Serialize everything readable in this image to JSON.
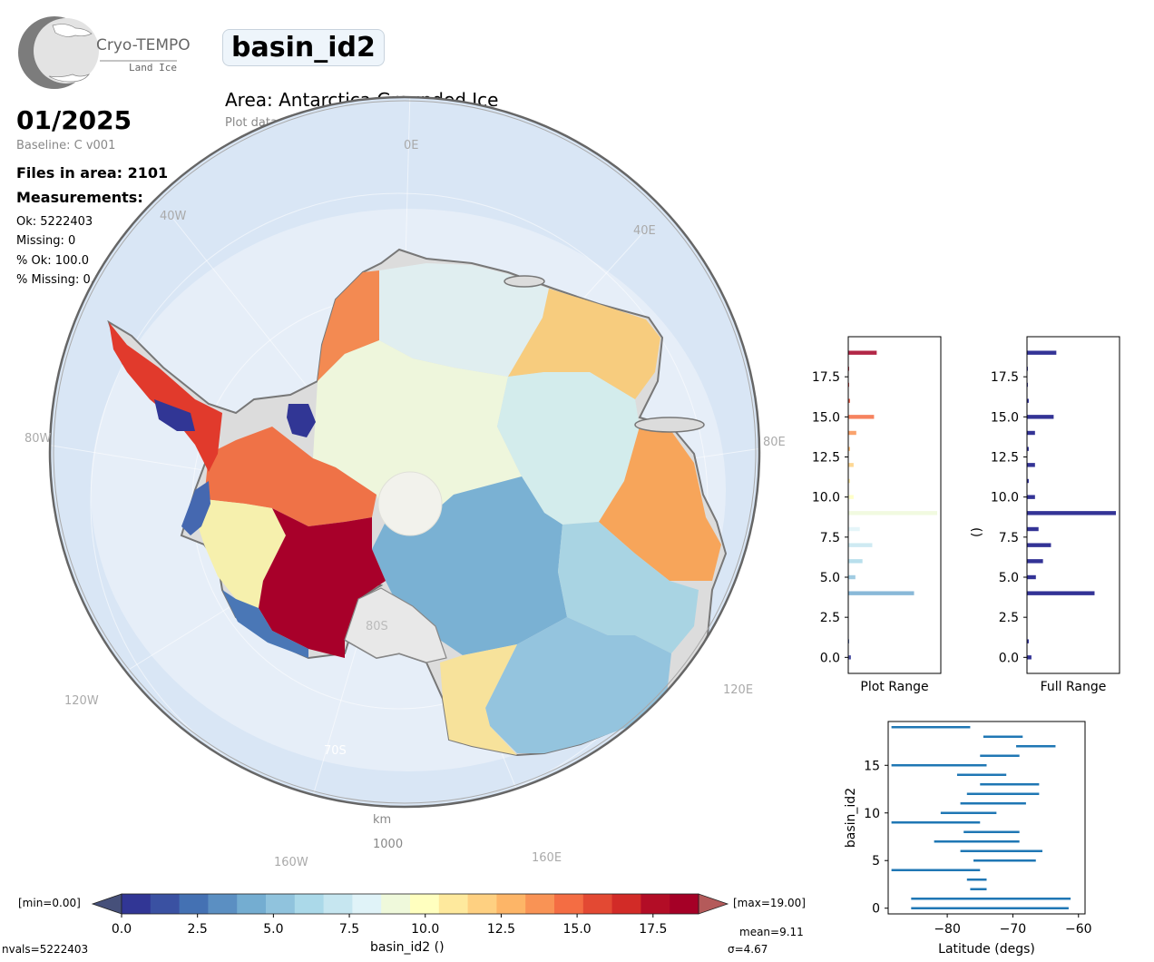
{
  "logo": {
    "name": "Cryo-TEMPO",
    "subtitle": "Land Ice"
  },
  "title": "basin_id2",
  "area": "Area: Antarctica Grounded Ice",
  "mask": "Plot data mask: grounded ice",
  "date": "01/2025",
  "baseline": "Baseline: C v001",
  "files": "Files in area: 2101",
  "measurements_label": "Measurements:",
  "stats": [
    "Ok: 5222403",
    "Missing: 0",
    "% Ok: 100.0",
    "% Missing: 0.0"
  ],
  "map": {
    "lon_labels": [
      "0E",
      "40E",
      "80E",
      "120E",
      "160E",
      "160W",
      "120W",
      "80W",
      "40W"
    ],
    "lat_labels": [
      "80S",
      "70S"
    ],
    "scale_unit": "km",
    "scale_value": "1000"
  },
  "colorbar": {
    "min_label": "[min=0.00]",
    "max_label": "[max=19.00]",
    "ticks": [
      "0.0",
      "2.5",
      "5.0",
      "7.5",
      "10.0",
      "12.5",
      "15.0",
      "17.5"
    ],
    "label": "basin_id2 ()",
    "mean": "mean=9.11",
    "sigma": "σ=4.67",
    "nvals": "nvals=5222403",
    "colors": [
      "#313695",
      "#3a51a2",
      "#4471b3",
      "#5b8fc2",
      "#74add1",
      "#90c3dd",
      "#abd9e9",
      "#c6e6f0",
      "#e0f3f8",
      "#eff9db",
      "#ffffbf",
      "#fee99d",
      "#fed081",
      "#fdb567",
      "#f99355",
      "#f46d43",
      "#e34933",
      "#d22b27",
      "#b30d26",
      "#a50026"
    ],
    "extend_min": "#46507a",
    "extend_max": "#b45a5a"
  },
  "chart_data": [
    {
      "type": "bar",
      "orientation": "horizontal",
      "xlabel": "Plot Range",
      "ylabel": "",
      "ylim": [
        -1,
        20
      ],
      "yticks": [
        "0.0",
        "2.5",
        "5.0",
        "7.5",
        "10.0",
        "12.5",
        "15.0",
        "17.5"
      ],
      "categories": [
        0,
        1,
        2,
        3,
        4,
        5,
        6,
        7,
        8,
        9,
        10,
        11,
        12,
        13,
        14,
        15,
        16,
        17,
        18,
        19
      ],
      "values": [
        3,
        1,
        0,
        0,
        74,
        8,
        16,
        27,
        13,
        100,
        6,
        2,
        6,
        2,
        9,
        29,
        2,
        1,
        1,
        32
      ],
      "colors": [
        "#313695",
        "#3a51a2",
        "#4471b3",
        "#5b8fc2",
        "#74add1",
        "#90c3dd",
        "#abd9e9",
        "#c6e6f0",
        "#e0f3f8",
        "#eff9db",
        "#ffffbf",
        "#fee99d",
        "#fed081",
        "#fdb567",
        "#f99355",
        "#f46d43",
        "#e34933",
        "#d22b27",
        "#b30d26",
        "#a50026"
      ]
    },
    {
      "type": "bar",
      "orientation": "horizontal",
      "xlabel": "Full Range",
      "ylabel": "()",
      "ylim": [
        -1,
        20
      ],
      "yticks": [
        "0.0",
        "2.5",
        "5.0",
        "7.5",
        "10.0",
        "12.5",
        "15.0",
        "17.5"
      ],
      "categories": [
        0,
        1,
        2,
        3,
        4,
        5,
        6,
        7,
        8,
        9,
        10,
        11,
        12,
        13,
        14,
        15,
        16,
        17,
        18,
        19
      ],
      "values": [
        5,
        2,
        0,
        0,
        76,
        10,
        18,
        27,
        13,
        100,
        9,
        2,
        9,
        2,
        9,
        30,
        2,
        1,
        1,
        33
      ],
      "color": "#333396"
    },
    {
      "type": "range",
      "orientation": "horizontal",
      "xlabel": "Latitude (degs)",
      "ylabel": "basin_id2",
      "xlim": [
        -89,
        -59
      ],
      "ylim": [
        -0.6,
        19.6
      ],
      "xticks": [
        -80,
        -70,
        -60
      ],
      "yticks": [
        0,
        5,
        10,
        15
      ],
      "color": "#1f77b4",
      "ranges": [
        [
          -85.5,
          -61.5
        ],
        [
          -85.5,
          -61.2
        ],
        [
          -76.5,
          -74
        ],
        [
          -77,
          -74
        ],
        [
          -88.5,
          -75
        ],
        [
          -76,
          -66.5
        ],
        [
          -78,
          -65.5
        ],
        [
          -82,
          -69
        ],
        [
          -77.5,
          -69
        ],
        [
          -88.5,
          -75
        ],
        [
          -81,
          -72.5
        ],
        [
          -78,
          -68
        ],
        [
          -77,
          -66
        ],
        [
          -75,
          -66
        ],
        [
          -78.5,
          -71
        ],
        [
          -88.5,
          -74
        ],
        [
          -75,
          -69
        ],
        [
          -69.5,
          -63.5
        ],
        [
          -74.5,
          -68.5
        ],
        [
          -88.5,
          -76.5
        ]
      ]
    }
  ]
}
